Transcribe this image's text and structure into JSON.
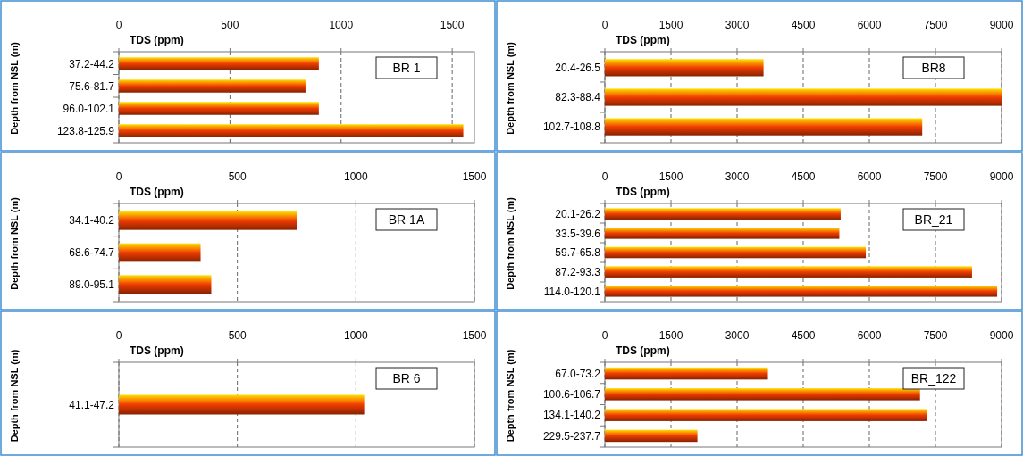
{
  "chart_data": [
    {
      "type": "bar",
      "orientation": "horizontal",
      "title": "BR 1",
      "xlabel": "TDS (ppm)",
      "ylabel": "Depth from NSL (m)",
      "categories": [
        "37.2-44.2",
        "75.6-81.7",
        "96.0-102.1",
        "123.8-125.9"
      ],
      "values": [
        900,
        840,
        900,
        1550
      ],
      "color": "#f03c00",
      "xlim": [
        0,
        1600
      ],
      "xticks": [
        0,
        500,
        1000,
        1500
      ],
      "grid": "x"
    },
    {
      "type": "bar",
      "orientation": "horizontal",
      "title": "BR8",
      "xlabel": "TDS (ppm)",
      "ylabel": "Depth from NSL (m)",
      "categories": [
        "20.4-26.5",
        "82.3-88.4",
        "102.7-108.8"
      ],
      "values": [
        3600,
        9000,
        7200
      ],
      "color": "#f03c00",
      "xlim": [
        0,
        9000
      ],
      "xticks": [
        0,
        1500,
        3000,
        4500,
        6000,
        7500,
        9000
      ],
      "grid": "x"
    },
    {
      "type": "bar",
      "orientation": "horizontal",
      "title": "BR 1A",
      "xlabel": "TDS (ppm)",
      "ylabel": "Depth from NSL (m)",
      "categories": [
        "34.1-40.2",
        "68.6-74.7",
        "89.0-95.1"
      ],
      "values": [
        750,
        345,
        390
      ],
      "color": "#f03c00",
      "xlim": [
        0,
        1500
      ],
      "xticks": [
        0,
        500,
        1000,
        1500
      ],
      "grid": "x"
    },
    {
      "type": "bar",
      "orientation": "horizontal",
      "title": "BR_21",
      "xlabel": "TDS (ppm)",
      "ylabel": "Depth from NSL (m)",
      "categories": [
        "20.1-26.2",
        "33.5-39.6",
        "59.7-65.8",
        "87.2-93.3",
        "114.0-120.1"
      ],
      "values": [
        5350,
        5320,
        5920,
        8330,
        8900
      ],
      "color": "#f03c00",
      "xlim": [
        0,
        9000
      ],
      "xticks": [
        0,
        1500,
        3000,
        4500,
        6000,
        7500,
        9000
      ],
      "grid": "x"
    },
    {
      "type": "bar",
      "orientation": "horizontal",
      "title": "BR 6",
      "xlabel": "TDS (ppm)",
      "ylabel": "Depth from NSL (m)",
      "categories": [
        "41.1-47.2"
      ],
      "values": [
        1035
      ],
      "color": "#f03c00",
      "xlim": [
        0,
        1500
      ],
      "xticks": [
        0,
        500,
        1000,
        1500
      ],
      "grid": "x"
    },
    {
      "type": "bar",
      "orientation": "horizontal",
      "title": "BR_122",
      "xlabel": "TDS (ppm)",
      "ylabel": "Depth from NSL (m)",
      "categories": [
        "67.0-73.2",
        "100.6-106.7",
        "134.1-140.2",
        "229.5-237.7"
      ],
      "values": [
        3700,
        7150,
        7300,
        2100
      ],
      "color": "#f03c00",
      "xlim": [
        0,
        9000
      ],
      "xticks": [
        0,
        1500,
        3000,
        4500,
        6000,
        7500,
        9000
      ],
      "grid": "x"
    }
  ]
}
